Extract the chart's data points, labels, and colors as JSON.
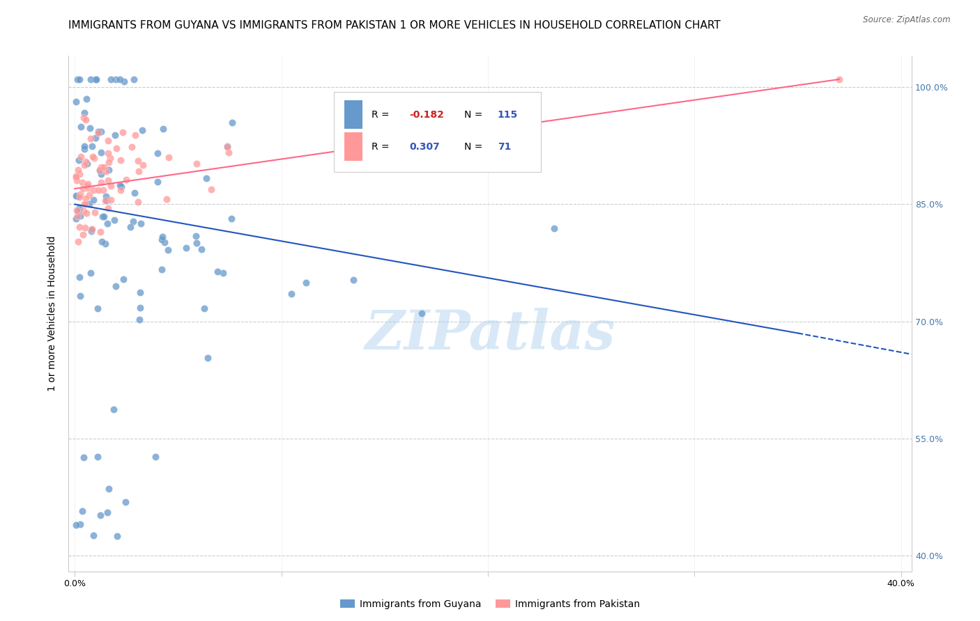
{
  "title": "IMMIGRANTS FROM GUYANA VS IMMIGRANTS FROM PAKISTAN 1 OR MORE VEHICLES IN HOUSEHOLD CORRELATION CHART",
  "source": "Source: ZipAtlas.com",
  "ylabel": "1 or more Vehicles in Household",
  "guyana_color": "#6699CC",
  "pakistan_color": "#FF9999",
  "guyana_line_color": "#2255BB",
  "pakistan_line_color": "#FF6688",
  "guyana_R": -0.182,
  "guyana_N": 115,
  "pakistan_R": 0.307,
  "pakistan_N": 71,
  "watermark": "ZIPatlas",
  "watermark_color": "#AACCEE",
  "legend_label_guyana": "Immigrants from Guyana",
  "legend_label_pakistan": "Immigrants from Pakistan",
  "title_fontsize": 11,
  "right_ytick_color": "#4477AA",
  "xlim_min": -0.3,
  "xlim_max": 40.5,
  "ylim_min": 38,
  "ylim_max": 104
}
